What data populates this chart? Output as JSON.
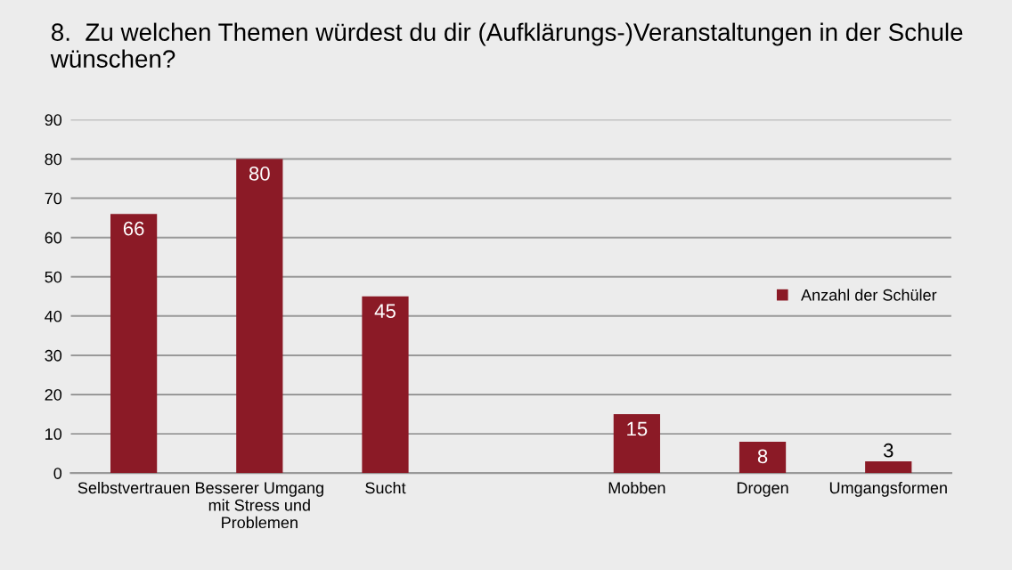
{
  "chart_data": {
    "type": "bar",
    "title": "8.  Zu welchen Themen würdest du dir (Aufklärungs-)Veranstaltungen in der Schule wünschen?",
    "categories": [
      "Selbstvertrauen",
      "Besserer Umgang\nmit Stress und\nProblemen",
      "Sucht",
      null,
      "Mobben",
      "Drogen",
      "Umgangsformen"
    ],
    "series": [
      {
        "name": "Anzahl der Schüler",
        "color": "#8b1a26",
        "values": [
          66,
          80,
          45,
          null,
          15,
          8,
          3
        ]
      }
    ],
    "ylim": [
      0,
      90
    ],
    "yticks": [
      0,
      10,
      20,
      30,
      40,
      50,
      60,
      70,
      80,
      90
    ],
    "grid": "y",
    "legend": "right",
    "data_labels": true
  }
}
